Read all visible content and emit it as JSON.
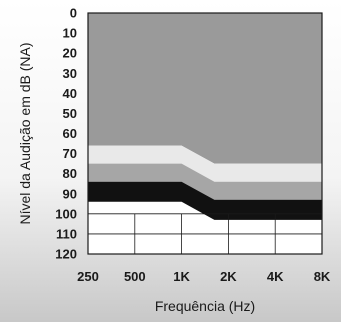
{
  "chart_data": {
    "type": "area",
    "xlabel": "Frequência (Hz)",
    "ylabel": "Nível da Audição em dB (NA)",
    "x_ticks": [
      "250",
      "500",
      "1K",
      "2K",
      "4K",
      "8K"
    ],
    "y_ticks": [
      0,
      10,
      20,
      30,
      40,
      50,
      60,
      70,
      80,
      90,
      100,
      110,
      120
    ],
    "ylim": [
      0,
      120
    ],
    "y_inverted": true,
    "grid": true,
    "bands": [
      {
        "color": "#9a9a9a",
        "lower": [
          66,
          66,
          66,
          75,
          75,
          75
        ]
      },
      {
        "color": "#e9e9e9",
        "lower": [
          75,
          75,
          75,
          84,
          84,
          84
        ]
      },
      {
        "color": "#a6a6a6",
        "lower": [
          84,
          84,
          84,
          93,
          93,
          93
        ]
      },
      {
        "color": "#111111",
        "lower": [
          94,
          94,
          94,
          103,
          103,
          103
        ]
      }
    ],
    "curve": {
      "x_positions": [
        0,
        1,
        2,
        2.7,
        3,
        4,
        5
      ],
      "segment_knee": 2.7,
      "x_knee_label": ""
    }
  }
}
